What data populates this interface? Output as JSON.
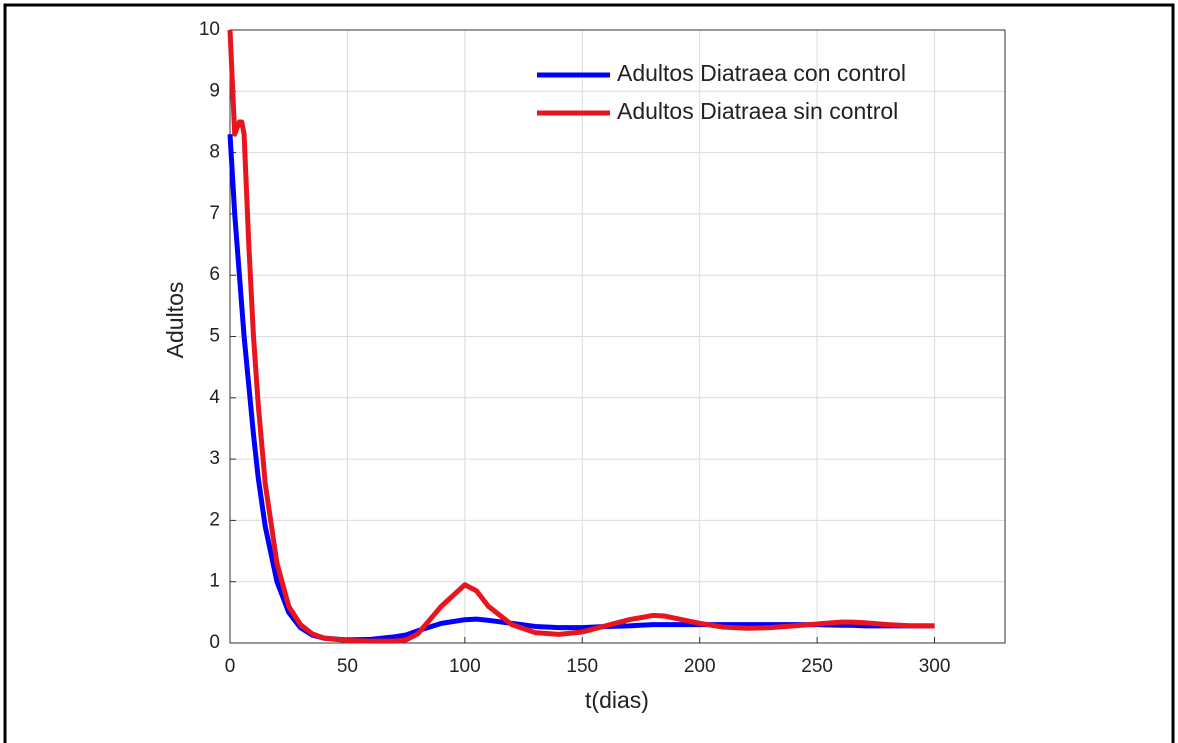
{
  "chart_data": {
    "type": "line",
    "xlabel": "t(dias)",
    "ylabel": "Adultos",
    "x": [
      0,
      2,
      4,
      5,
      6,
      8,
      10,
      12,
      15,
      20,
      25,
      30,
      35,
      40,
      50,
      60,
      70,
      75,
      80,
      90,
      100,
      105,
      110,
      120,
      130,
      140,
      150,
      160,
      170,
      180,
      185,
      190,
      200,
      210,
      220,
      230,
      240,
      250,
      260,
      265,
      270,
      280,
      290,
      300
    ],
    "series": [
      {
        "name": "Adultos Diatraea con control",
        "color": "#0000ff",
        "values": [
          8.3,
          7.0,
          6.0,
          5.5,
          5.0,
          4.2,
          3.4,
          2.7,
          1.9,
          1.0,
          0.5,
          0.25,
          0.13,
          0.08,
          0.05,
          0.06,
          0.1,
          0.13,
          0.2,
          0.32,
          0.38,
          0.39,
          0.37,
          0.32,
          0.27,
          0.25,
          0.25,
          0.27,
          0.28,
          0.3,
          0.3,
          0.3,
          0.3,
          0.3,
          0.3,
          0.3,
          0.3,
          0.3,
          0.29,
          0.29,
          0.28,
          0.28,
          0.28,
          0.28
        ]
      },
      {
        "name": "Adultos Diatraea sin control",
        "color": "#e8141e",
        "values": [
          10,
          8.3,
          8.5,
          8.5,
          8.3,
          6.5,
          5.0,
          3.9,
          2.6,
          1.3,
          0.6,
          0.3,
          0.15,
          0.08,
          0.04,
          0.03,
          0.03,
          0.05,
          0.15,
          0.6,
          0.95,
          0.85,
          0.6,
          0.3,
          0.17,
          0.14,
          0.18,
          0.28,
          0.38,
          0.45,
          0.44,
          0.4,
          0.32,
          0.26,
          0.24,
          0.25,
          0.28,
          0.31,
          0.34,
          0.34,
          0.33,
          0.3,
          0.28,
          0.28
        ]
      }
    ],
    "xlim": [
      0,
      330
    ],
    "xticks": [
      0,
      50,
      100,
      150,
      200,
      250,
      300
    ],
    "ylim": [
      0,
      10
    ],
    "yticks": [
      0,
      1,
      2,
      3,
      4,
      5,
      6,
      7,
      8,
      9,
      10
    ],
    "grid": true,
    "legend": "upper-right"
  }
}
